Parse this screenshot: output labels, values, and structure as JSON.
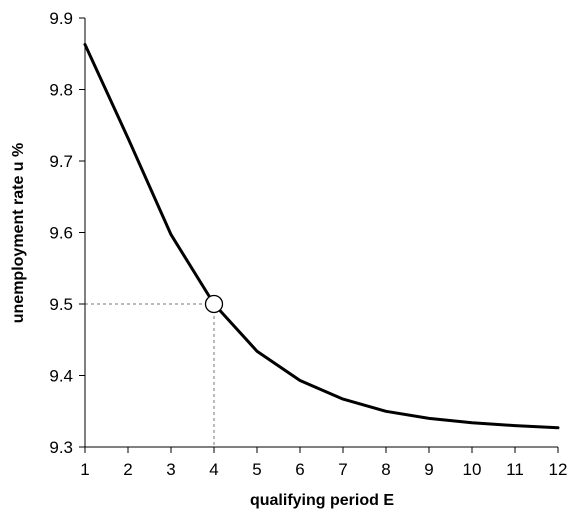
{
  "chart_data": {
    "type": "line",
    "title": "",
    "xlabel": "qualifying period E",
    "ylabel": "unemployment rate u %",
    "xlim": [
      1,
      12
    ],
    "ylim": [
      9.3,
      9.9
    ],
    "xticks": [
      "1",
      "2",
      "3",
      "4",
      "5",
      "6",
      "7",
      "8",
      "9",
      "10",
      "11",
      "12"
    ],
    "yticks": [
      "9.3",
      "9.4",
      "9.5",
      "9.6",
      "9.7",
      "9.8",
      "9.9"
    ],
    "grid": false,
    "series": [
      {
        "color": "#000000",
        "x": [
          1,
          2,
          3,
          4,
          5,
          6,
          7,
          8,
          9,
          10,
          11,
          12
        ],
        "y": [
          9.863,
          9.732,
          9.597,
          9.5,
          9.434,
          9.393,
          9.367,
          9.35,
          9.34,
          9.334,
          9.33,
          9.327
        ]
      }
    ],
    "highlight": {
      "x": 4,
      "y": 9.5
    }
  }
}
